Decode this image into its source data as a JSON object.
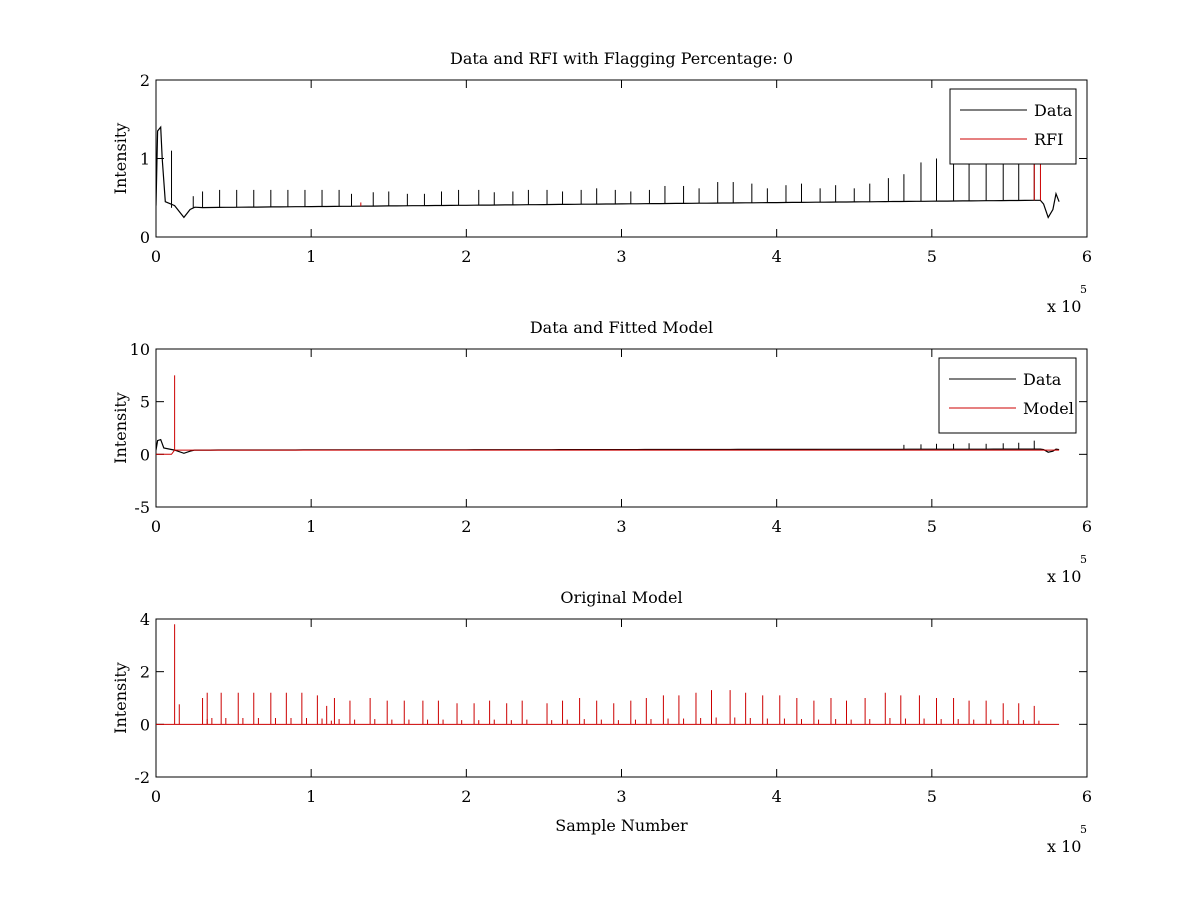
{
  "chart_data": [
    {
      "type": "line",
      "title": "Data and RFI with Flagging Percentage: 0",
      "xlabel": "",
      "ylabel": "Intensity",
      "xlim": [
        0,
        6
      ],
      "ylim": [
        0,
        2
      ],
      "xticks": [
        "0",
        "1",
        "2",
        "3",
        "4",
        "5",
        "6"
      ],
      "yticks": [
        "0",
        "1",
        "2"
      ],
      "x_multiplier": "x 10",
      "x_multiplier_exp": "5",
      "grid": false,
      "legend_position": "top-right",
      "baseline": {
        "start": 0.37,
        "end": 0.47
      },
      "series": [
        {
          "name": "Data",
          "color": "#000000",
          "spikes_x": [
            0.1,
            0.24,
            0.3,
            0.41,
            0.52,
            0.63,
            0.74,
            0.85,
            0.96,
            1.07,
            1.18,
            1.26,
            1.4,
            1.5,
            1.62,
            1.73,
            1.84,
            1.95,
            2.08,
            2.18,
            2.3,
            2.4,
            2.52,
            2.62,
            2.74,
            2.84,
            2.96,
            3.06,
            3.18,
            3.28,
            3.4,
            3.5,
            3.62,
            3.72,
            3.84,
            3.94,
            4.06,
            4.16,
            4.28,
            4.38,
            4.5,
            4.6,
            4.72,
            4.82,
            4.93,
            5.03,
            5.14,
            5.24,
            5.35,
            5.46,
            5.56,
            5.66
          ],
          "spikes_y": [
            1.1,
            0.52,
            0.58,
            0.6,
            0.6,
            0.6,
            0.6,
            0.6,
            0.6,
            0.6,
            0.6,
            0.55,
            0.57,
            0.58,
            0.55,
            0.55,
            0.58,
            0.6,
            0.6,
            0.57,
            0.58,
            0.6,
            0.6,
            0.58,
            0.6,
            0.62,
            0.6,
            0.58,
            0.6,
            0.65,
            0.65,
            0.62,
            0.7,
            0.7,
            0.68,
            0.62,
            0.66,
            0.68,
            0.62,
            0.66,
            0.62,
            0.68,
            0.75,
            0.8,
            0.95,
            1.0,
            1.0,
            1.05,
            1.0,
            1.05,
            1.0,
            1.05
          ]
        },
        {
          "name": "RFI",
          "color": "#cc0000",
          "spikes_x": [
            1.32,
            5.66,
            5.7
          ],
          "spikes_y": [
            0.44,
            1.0,
            0.95
          ]
        }
      ]
    },
    {
      "type": "line",
      "title": "Data and Fitted Model",
      "xlabel": "",
      "ylabel": "Intensity",
      "xlim": [
        0,
        6
      ],
      "ylim": [
        -5,
        10
      ],
      "xticks": [
        "0",
        "1",
        "2",
        "3",
        "4",
        "5",
        "6"
      ],
      "yticks": [
        "-5",
        "0",
        "5",
        "10"
      ],
      "x_multiplier": "x 10",
      "x_multiplier_exp": "5",
      "grid": false,
      "legend_position": "top-right",
      "baseline": {
        "start": 0.4,
        "end": 0.5
      },
      "series": [
        {
          "name": "Data",
          "color": "#000000",
          "spikes_x": [
            4.82,
            4.93,
            5.03,
            5.14,
            5.24,
            5.35,
            5.46,
            5.56,
            5.66
          ],
          "spikes_y": [
            0.9,
            0.95,
            1.0,
            1.0,
            1.05,
            1.0,
            1.05,
            1.1,
            1.3
          ]
        },
        {
          "name": "Model",
          "color": "#cc0000",
          "spikes_x": [
            0.12
          ],
          "spikes_y": [
            7.5
          ]
        }
      ]
    },
    {
      "type": "line",
      "title": "Original Model",
      "xlabel": "Sample Number",
      "ylabel": "Intensity",
      "xlim": [
        0,
        6
      ],
      "ylim": [
        -2,
        4
      ],
      "xticks": [
        "0",
        "1",
        "2",
        "3",
        "4",
        "5",
        "6"
      ],
      "yticks": [
        "-2",
        "0",
        "2",
        "4"
      ],
      "x_multiplier": "x 10",
      "x_multiplier_exp": "5",
      "grid": false,
      "series": [
        {
          "color": "#cc0000",
          "x_range": [
            0,
            5.82
          ],
          "baseline": 0,
          "spikes_x": [
            0.12,
            0.3,
            0.33,
            0.42,
            0.53,
            0.63,
            0.74,
            0.84,
            0.94,
            1.04,
            1.1,
            1.15,
            1.25,
            1.38,
            1.49,
            1.6,
            1.72,
            1.82,
            1.94,
            2.05,
            2.15,
            2.26,
            2.36,
            2.52,
            2.62,
            2.73,
            2.84,
            2.95,
            3.06,
            3.16,
            3.27,
            3.37,
            3.48,
            3.58,
            3.7,
            3.8,
            3.91,
            4.02,
            4.13,
            4.24,
            4.35,
            4.45,
            4.57,
            4.7,
            4.8,
            4.92,
            5.03,
            5.14,
            5.24,
            5.35,
            5.46,
            5.56,
            5.66
          ],
          "spikes_y": [
            3.8,
            1.0,
            1.2,
            1.2,
            1.2,
            1.2,
            1.2,
            1.2,
            1.2,
            1.1,
            0.7,
            1.0,
            0.9,
            1.0,
            0.9,
            0.9,
            0.9,
            0.9,
            0.8,
            0.8,
            0.9,
            0.8,
            0.9,
            0.8,
            0.9,
            1.0,
            0.9,
            0.8,
            0.9,
            1.0,
            1.1,
            1.1,
            1.2,
            1.3,
            1.3,
            1.2,
            1.1,
            1.1,
            1.0,
            0.9,
            1.0,
            0.9,
            1.0,
            1.2,
            1.1,
            1.1,
            1.0,
            1.0,
            0.9,
            0.9,
            0.8,
            0.8,
            0.7
          ]
        }
      ]
    }
  ]
}
